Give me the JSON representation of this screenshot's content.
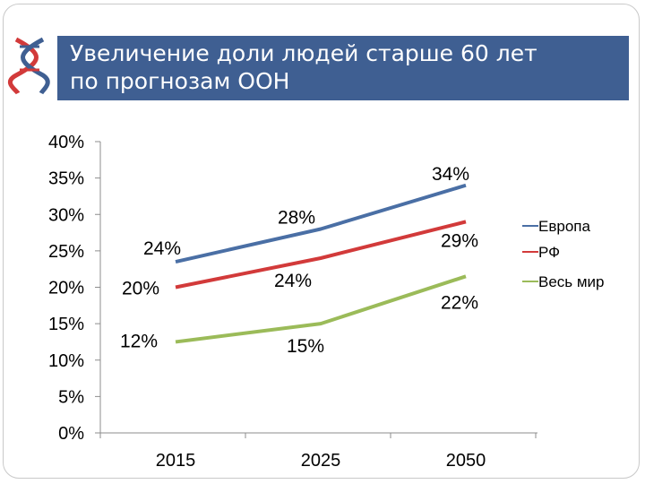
{
  "slide": {
    "title_line1": "Увеличение доли людей старше 60 лет",
    "title_line2": "по прогнозам ООН",
    "logo_icon": "dna-helix-icon",
    "title_bar_color": "#3f5f92"
  },
  "chart_data": {
    "type": "line",
    "x": [
      "2015",
      "2025",
      "2050"
    ],
    "ylim": [
      0,
      40
    ],
    "y_ticks": [
      "0%",
      "5%",
      "10%",
      "15%",
      "20%",
      "25%",
      "30%",
      "35%",
      "40%"
    ],
    "grid": false,
    "legend_position": "right",
    "series": [
      {
        "name": "Европа",
        "values": [
          23.5,
          28,
          34
        ],
        "color": "#4a6fa5",
        "labels": [
          "24%",
          "28%",
          "34%"
        ]
      },
      {
        "name": "РФ",
        "values": [
          20,
          24,
          29
        ],
        "color": "#d23a3a",
        "labels": [
          "20%",
          "24%",
          "29%"
        ]
      },
      {
        "name": "Весь мир",
        "values": [
          12.5,
          15,
          21.5
        ],
        "color": "#9bbb59",
        "labels": [
          "12%",
          "15%",
          "22%"
        ]
      }
    ]
  }
}
